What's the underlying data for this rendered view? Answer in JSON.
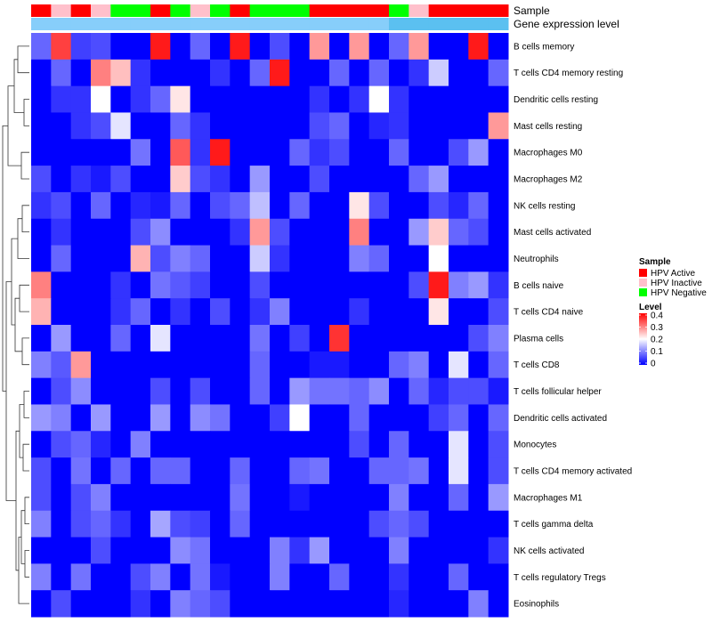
{
  "chart_data": {
    "type": "heatmap",
    "title": "",
    "rows": [
      "B cells memory",
      "T cells CD4 memory resting",
      "Dendritic cells resting",
      "Mast cells resting",
      "Macrophages M0",
      "Macrophages M2",
      "NK cells resting",
      "Mast cells activated",
      "Neutrophils",
      "B cells naive",
      "T cells CD4 naive",
      "Plasma cells",
      "T cells CD8",
      "T cells follicular helper",
      "Dendritic cells activated",
      "Monocytes",
      "T cells CD4 memory activated",
      "Macrophages M1",
      "T cells gamma delta",
      "NK cells activated",
      "T cells regulatory  Tregs",
      "Eosinophils"
    ],
    "sample_group_codes": [
      "A",
      "I",
      "A",
      "I",
      "N",
      "N",
      "A",
      "N",
      "I",
      "N",
      "A",
      "N",
      "N",
      "N",
      "A",
      "A",
      "A",
      "A",
      "N",
      "I",
      "A",
      "A",
      "A",
      "A"
    ],
    "expression_group_codes": [
      1,
      1,
      1,
      1,
      1,
      1,
      1,
      1,
      1,
      1,
      1,
      1,
      1,
      1,
      1,
      1,
      1,
      1,
      2,
      2,
      2,
      2,
      2,
      2
    ],
    "values": [
      [
        0.08,
        0.35,
        0.05,
        0.06,
        0,
        0,
        0.38,
        0,
        0.08,
        0,
        0.38,
        0,
        0.06,
        0,
        0.28,
        0,
        0.28,
        0,
        0.08,
        0.28,
        0,
        0,
        0.38,
        0
      ],
      [
        0,
        0.08,
        0,
        0.3,
        0.25,
        0.04,
        0,
        0,
        0,
        0.04,
        0,
        0.08,
        0.38,
        0,
        0,
        0.08,
        0,
        0.08,
        0,
        0.04,
        0.16,
        0,
        0,
        0.08
      ],
      [
        0,
        0.04,
        0.04,
        0.2,
        0,
        0.04,
        0.08,
        0.22,
        0,
        0,
        0,
        0,
        0,
        0,
        0.04,
        0,
        0.04,
        0.2,
        0.04,
        0,
        0,
        0,
        0,
        0
      ],
      [
        0,
        0,
        0.04,
        0.06,
        0.18,
        0,
        0,
        0.08,
        0.04,
        0,
        0,
        0,
        0,
        0,
        0.06,
        0.08,
        0,
        0.03,
        0.04,
        0,
        0,
        0,
        0,
        0.28
      ],
      [
        0,
        0,
        0,
        0,
        0,
        0.09,
        0,
        0.33,
        0.04,
        0.38,
        0,
        0,
        0,
        0.08,
        0.04,
        0.06,
        0,
        0,
        0.08,
        0,
        0,
        0.06,
        0.12,
        0
      ],
      [
        0.06,
        0,
        0.04,
        0.02,
        0.06,
        0,
        0,
        0.24,
        0.06,
        0.04,
        0,
        0.12,
        0,
        0,
        0.06,
        0,
        0,
        0,
        0,
        0.08,
        0.12,
        0,
        0,
        0
      ],
      [
        0.04,
        0.06,
        0,
        0.08,
        0,
        0.03,
        0.02,
        0.08,
        0,
        0.06,
        0.08,
        0.15,
        0,
        0.08,
        0,
        0,
        0.22,
        0.06,
        0,
        0,
        0.06,
        0.03,
        0.08,
        0
      ],
      [
        0,
        0.04,
        0,
        0,
        0,
        0.06,
        0.11,
        0,
        0,
        0,
        0.04,
        0.28,
        0.06,
        0,
        0,
        0,
        0.3,
        0,
        0,
        0.12,
        0.24,
        0.08,
        0.06,
        0
      ],
      [
        0,
        0.08,
        0,
        0,
        0,
        0.26,
        0.06,
        0.1,
        0.08,
        0,
        0,
        0.16,
        0.04,
        0,
        0,
        0,
        0.1,
        0.08,
        0,
        0,
        0.2,
        0,
        0,
        0
      ],
      [
        0.3,
        0,
        0,
        0,
        0.04,
        0,
        0.09,
        0.07,
        0.05,
        0,
        0,
        0.06,
        0,
        0,
        0,
        0,
        0,
        0,
        0,
        0.06,
        0.38,
        0.1,
        0.12,
        0.04
      ],
      [
        0.26,
        0,
        0,
        0,
        0.04,
        0.08,
        0,
        0.04,
        0,
        0.06,
        0,
        0.04,
        0.1,
        0,
        0,
        0,
        0.04,
        0,
        0,
        0,
        0.22,
        0,
        0,
        0.06
      ],
      [
        0,
        0.12,
        0,
        0,
        0.08,
        0,
        0.18,
        0,
        0,
        0,
        0,
        0.09,
        0,
        0.05,
        0,
        0.36,
        0,
        0,
        0,
        0,
        0,
        0,
        0.06,
        0.1
      ],
      [
        0.1,
        0.07,
        0.28,
        0,
        0,
        0,
        0,
        0,
        0,
        0,
        0,
        0.08,
        0,
        0,
        0.02,
        0.02,
        0,
        0,
        0.08,
        0.1,
        0,
        0.18,
        0,
        0.08
      ],
      [
        0,
        0.06,
        0.11,
        0,
        0,
        0,
        0.06,
        0,
        0.06,
        0,
        0,
        0.08,
        0,
        0.12,
        0.09,
        0.09,
        0.08,
        0.11,
        0,
        0.08,
        0.03,
        0.06,
        0.06,
        0.02
      ],
      [
        0.12,
        0.1,
        0,
        0.12,
        0,
        0,
        0.12,
        0,
        0.11,
        0.09,
        0,
        0,
        0.05,
        0.2,
        0,
        0,
        0.08,
        0,
        0,
        0,
        0.05,
        0.08,
        0,
        0.08
      ],
      [
        0,
        0.06,
        0.08,
        0.03,
        0,
        0.1,
        0,
        0,
        0,
        0,
        0,
        0,
        0,
        0,
        0,
        0,
        0.06,
        0,
        0.08,
        0,
        0,
        0.18,
        0,
        0.06
      ],
      [
        0.06,
        0,
        0.09,
        0,
        0.08,
        0,
        0.08,
        0.08,
        0,
        0,
        0.08,
        0,
        0,
        0.08,
        0.09,
        0,
        0,
        0.08,
        0.08,
        0.09,
        0,
        0.18,
        0,
        0.06
      ],
      [
        0.06,
        0,
        0.06,
        0.1,
        0,
        0,
        0,
        0,
        0,
        0,
        0.09,
        0,
        0,
        0.02,
        0,
        0,
        0,
        0,
        0.1,
        0,
        0,
        0.08,
        0,
        0.12
      ],
      [
        0.1,
        0,
        0.06,
        0.08,
        0.04,
        0,
        0.13,
        0.06,
        0.05,
        0,
        0.08,
        0,
        0,
        0,
        0,
        0,
        0,
        0.06,
        0.08,
        0.06,
        0,
        0,
        0,
        0
      ],
      [
        0,
        0,
        0,
        0.06,
        0,
        0,
        0,
        0.11,
        0.09,
        0,
        0,
        0,
        0.1,
        0.04,
        0.12,
        0,
        0,
        0,
        0.1,
        0,
        0,
        0,
        0,
        0.04
      ],
      [
        0.1,
        0,
        0.09,
        0,
        0,
        0.06,
        0.1,
        0,
        0.09,
        0.02,
        0,
        0,
        0.1,
        0,
        0,
        0.08,
        0,
        0,
        0.04,
        0,
        0,
        0.08,
        0,
        0
      ],
      [
        0,
        0.06,
        0,
        0,
        0,
        0.04,
        0,
        0.1,
        0.08,
        0.06,
        0,
        0,
        0,
        0,
        0,
        0,
        0,
        0,
        0.03,
        0,
        0,
        0,
        0.1,
        0
      ]
    ],
    "color_scale": {
      "title": "Level",
      "ticks": [
        "0.4",
        "0.3",
        "0.2",
        "0.1",
        "0"
      ],
      "min": 0,
      "max": 0.4,
      "colors": [
        "#0000ff",
        "#ffffff",
        "#ff0000"
      ]
    },
    "annotations": [
      {
        "label": "Sample"
      },
      {
        "label": "Gene expression level"
      }
    ],
    "sample_legend": {
      "title": "Sample",
      "items": [
        {
          "code": "A",
          "label": "HPV Active",
          "color": "#ff0000"
        },
        {
          "code": "I",
          "label": "HPV Inactive",
          "color": "#ffc0cb"
        },
        {
          "code": "N",
          "label": "HPV Negative",
          "color": "#00ff00"
        }
      ]
    },
    "expression_colors": [
      "#87cefa",
      "#5bc0f0"
    ],
    "dendrogram_leaf_order": [
      0,
      1,
      2,
      3,
      4,
      5,
      6,
      7,
      8,
      9,
      10,
      11,
      12,
      13,
      14,
      15,
      16,
      17,
      18,
      19,
      20,
      21
    ]
  }
}
